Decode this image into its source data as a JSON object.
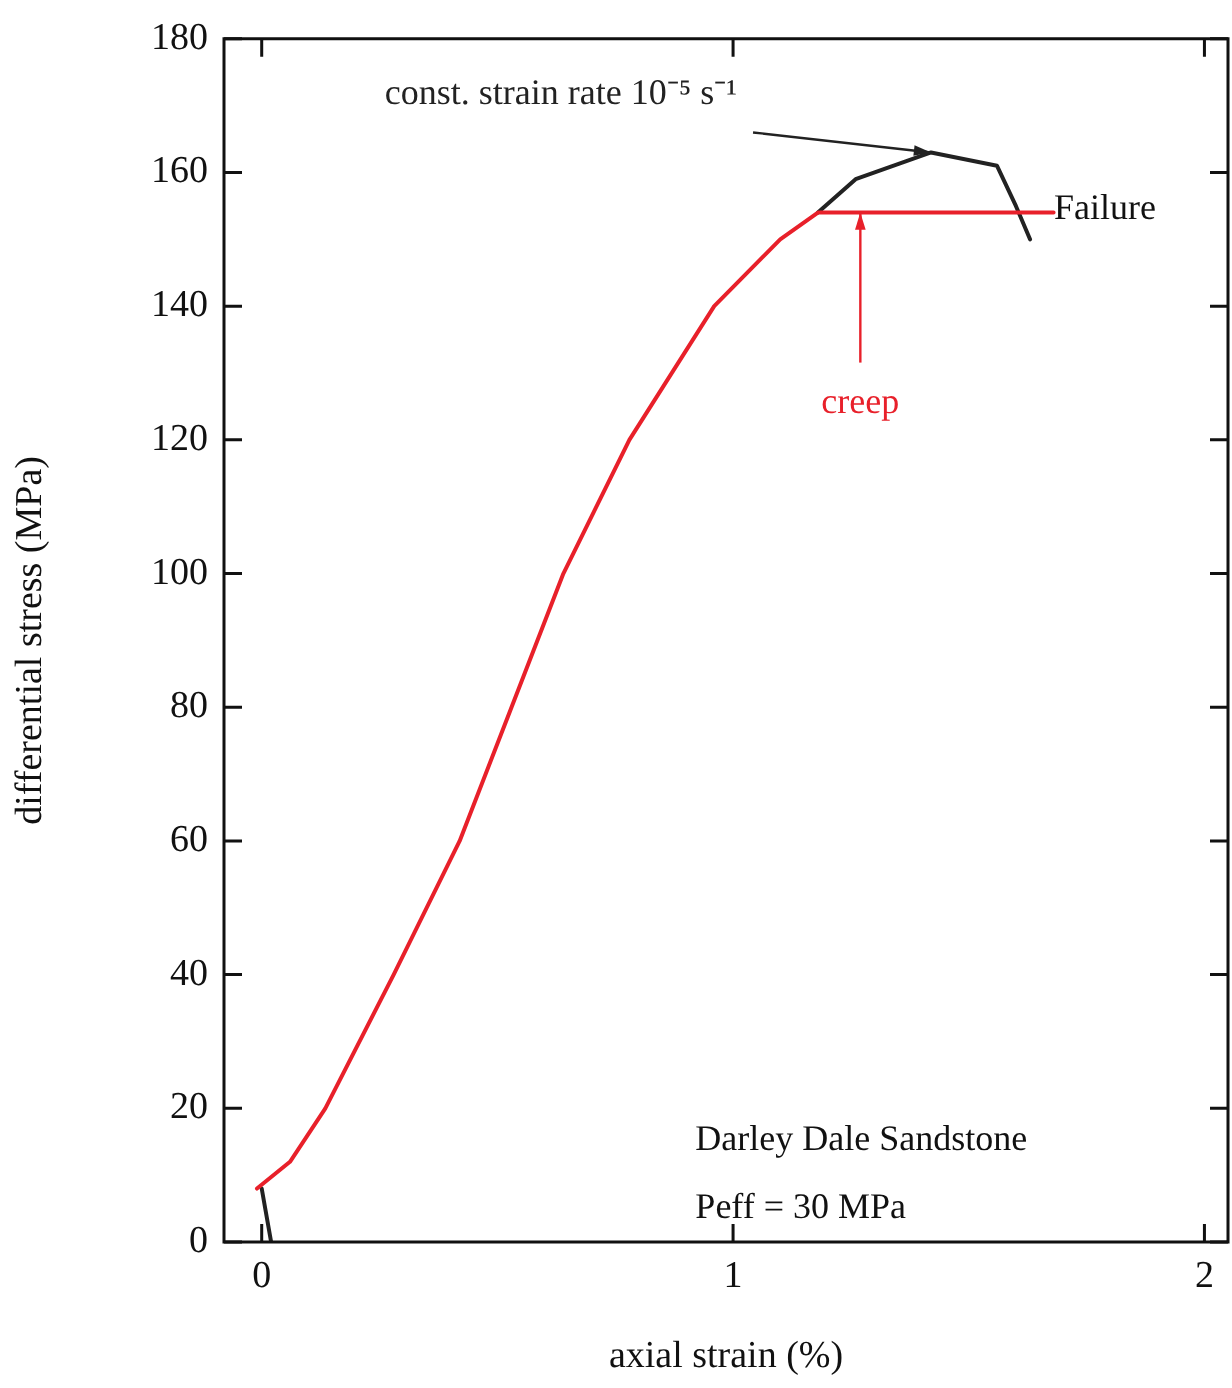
{
  "chart_data": {
    "type": "line",
    "xlabel": "axial strain (%)",
    "ylabel": "differential stress (MPa)",
    "xlim": [
      -0.08,
      2.05
    ],
    "xticks": [
      0,
      1,
      2
    ],
    "ylim": [
      0,
      180
    ],
    "yticks": [
      0,
      20,
      40,
      60,
      80,
      100,
      120,
      140,
      160,
      180
    ],
    "grid": false,
    "legend": false,
    "marker": "none",
    "series": [
      {
        "color": "#222222",
        "x": [
          0.02,
          0,
          0.06,
          0.135,
          0.28,
          0.42,
          0.53,
          0.64,
          0.78,
          0.96,
          1.1,
          1.18,
          1.26,
          1.42,
          1.56,
          1.6,
          1.63
        ],
        "values": [
          0,
          8,
          null,
          null,
          null,
          null,
          null,
          null,
          null,
          null,
          null,
          154,
          159,
          163,
          161,
          155,
          150
        ]
      },
      {
        "color": "#e8202a",
        "x": [
          -0.01,
          0.06,
          0.135,
          0.28,
          0.42,
          0.53,
          0.64,
          0.78,
          0.96,
          1.1,
          1.18,
          1.68
        ],
        "values": [
          8,
          12,
          20,
          40,
          60,
          80,
          100,
          120,
          140,
          150,
          154,
          154
        ]
      }
    ],
    "annotations": [
      {
        "text": "const. strain rate 10⁻⁵ s⁻¹",
        "x": 1.42,
        "y": 163
      },
      {
        "text": "creep",
        "x": 1.27,
        "y": 154
      },
      {
        "text": "Failure",
        "x": 1.63,
        "y": 150
      },
      "Darley Dale Sandstone",
      "Peff = 30 MPa"
    ]
  }
}
